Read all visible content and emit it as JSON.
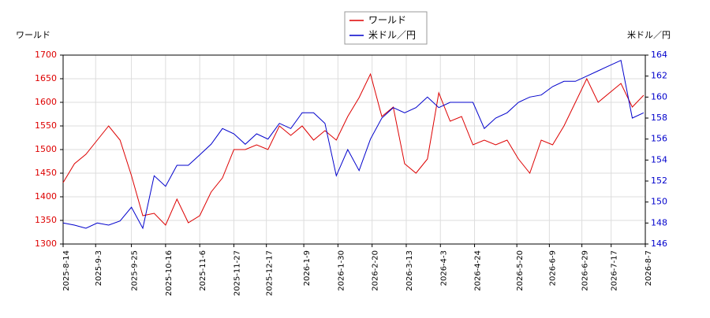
{
  "chart_data": {
    "type": "line",
    "y_label": "ワールド",
    "y2_label": "米ドル／円",
    "x": [
      "2025-8-14",
      "2025-8-21",
      "2025-8-28",
      "2025-9-4",
      "2025-9-11",
      "2025-9-18",
      "2025-9-25",
      "2025-10-2",
      "2025-10-9",
      "2025-10-16",
      "2025-10-23",
      "2025-10-30",
      "2025-11-6",
      "2025-11-13",
      "2025-11-20",
      "2025-11-27",
      "2025-12-4",
      "2025-12-11",
      "2025-12-18",
      "2025-12-25",
      "2026-1-1",
      "2026-1-8",
      "2026-1-15",
      "2026-1-22",
      "2026-1-29",
      "2026-2-5",
      "2026-2-12",
      "2026-2-19",
      "2026-2-26",
      "2026-3-5",
      "2026-3-12",
      "2026-3-19",
      "2026-3-26",
      "2026-4-2",
      "2026-4-9",
      "2026-4-16",
      "2026-4-23",
      "2026-4-30",
      "2026-5-7",
      "2026-5-14",
      "2026-5-21",
      "2026-5-28",
      "2026-6-4",
      "2026-6-11",
      "2026-6-18",
      "2026-6-25",
      "2026-7-2",
      "2026-7-9",
      "2026-7-16",
      "2026-7-23",
      "2026-7-30",
      "2026-8-6"
    ],
    "series": [
      {
        "name": "ワールド",
        "color": "#dd0000",
        "axis": "y",
        "values": [
          1430,
          1470,
          1490,
          1520,
          1550,
          1520,
          1445,
          1360,
          1365,
          1340,
          1395,
          1345,
          1360,
          1410,
          1440,
          1500,
          1500,
          1510,
          1500,
          1550,
          1530,
          1550,
          1520,
          1540,
          1520,
          1570,
          1610,
          1660,
          1570,
          1590,
          1470,
          1450,
          1480,
          1620,
          1560,
          1570,
          1510,
          1520,
          1510,
          1520,
          1480,
          1450,
          1520,
          1510,
          1550,
          1600,
          1650,
          1600,
          1620,
          1640,
          1590,
          1615
        ]
      },
      {
        "name": "米ドル／円",
        "color": "#0000cc",
        "axis": "y2",
        "values": [
          148,
          147.8,
          147.5,
          148,
          147.8,
          148.2,
          149.5,
          147.5,
          152.5,
          151.5,
          153.5,
          153.5,
          154.5,
          155.5,
          157,
          156.5,
          155.5,
          156.5,
          156,
          157.5,
          157,
          158.5,
          158.5,
          157.5,
          152.5,
          155,
          153,
          156,
          158,
          159,
          158.5,
          159,
          160,
          159,
          159.5,
          159.5,
          159.5,
          157,
          158,
          158.5,
          159.5,
          160,
          160.2,
          161,
          161.5,
          161.5,
          162,
          162.5,
          163,
          163.5,
          158,
          158.5
        ]
      }
    ],
    "xlim": [
      "2025-8-14",
      "2026-8-7"
    ],
    "xticks": [
      "2025-8-14",
      "2025-9-3",
      "2025-9-25",
      "2025-10-16",
      "2025-11-6",
      "2025-11-27",
      "2025-12-17",
      "2026-1-9",
      "2026-1-30",
      "2026-2-20",
      "2026-3-13",
      "2026-4-3",
      "2026-4-24",
      "2026-5-20",
      "2026-6-9",
      "2026-6-29",
      "2026-7-17",
      "2026-8-7"
    ],
    "ylim": [
      1300,
      1700
    ],
    "yticks": [
      1300,
      1350,
      1400,
      1450,
      1500,
      1550,
      1600,
      1650,
      1700
    ],
    "y2lim": [
      146,
      164
    ],
    "y2ticks": [
      146,
      148,
      150,
      152,
      154,
      156,
      158,
      160,
      162,
      164
    ],
    "grid": true,
    "legend": "top"
  }
}
